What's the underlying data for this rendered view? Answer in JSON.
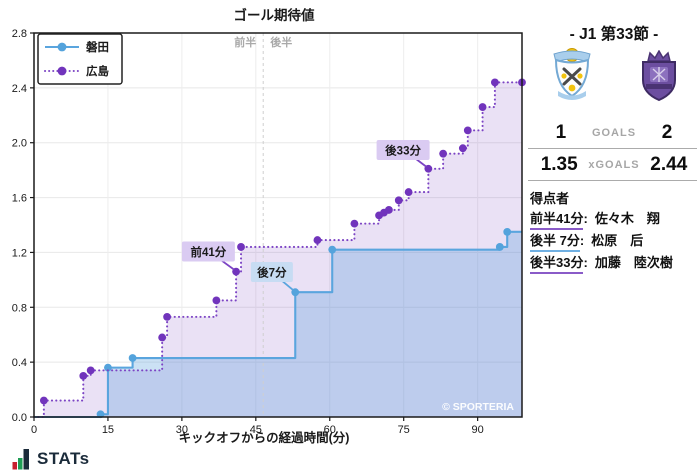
{
  "chart_data": {
    "type": "line",
    "step": true,
    "title": "ゴール期待値",
    "xlabel": "キックオフからの経過時間(分)",
    "ylabel": "",
    "xlim": [
      0,
      99
    ],
    "ylim": [
      0,
      2.8
    ],
    "xticks": [
      0,
      15,
      30,
      45,
      60,
      75,
      90
    ],
    "yticks": [
      0.0,
      0.4,
      0.8,
      1.2,
      1.6,
      2.0,
      2.4,
      2.8
    ],
    "grid": true,
    "legend_position": "upper-left",
    "half_line_x": 46.5,
    "half_labels": [
      "前半",
      "後半"
    ],
    "watermark": "© SPORTERIA",
    "series": [
      {
        "name": "磐田",
        "style": "solid",
        "color": "#5aa5de",
        "marker_color": "#54a3dc",
        "fill": "rgba(93,163,222,0.32)",
        "points": [
          [
            13.5,
            0.02
          ],
          [
            15,
            0.36
          ],
          [
            20,
            0.43
          ],
          [
            53,
            0.91
          ],
          [
            60.5,
            1.22
          ],
          [
            94.5,
            1.24
          ],
          [
            96,
            1.35
          ]
        ]
      },
      {
        "name": "広島",
        "style": "dotted",
        "color": "#7c44c4",
        "marker_color": "#7134bc",
        "fill": "rgba(124,66,194,0.16)",
        "points": [
          [
            2,
            0.12
          ],
          [
            10,
            0.3
          ],
          [
            11.5,
            0.34
          ],
          [
            26,
            0.58
          ],
          [
            27,
            0.73
          ],
          [
            37,
            0.85
          ],
          [
            41,
            1.06
          ],
          [
            42,
            1.24
          ],
          [
            57.5,
            1.29
          ],
          [
            65,
            1.41
          ],
          [
            70,
            1.47
          ],
          [
            71,
            1.49
          ],
          [
            72,
            1.51
          ],
          [
            74,
            1.58
          ],
          [
            76,
            1.64
          ],
          [
            80,
            1.81
          ],
          [
            83,
            1.92
          ],
          [
            87,
            1.96
          ],
          [
            88,
            2.09
          ],
          [
            91,
            2.26
          ],
          [
            93.5,
            2.44
          ],
          [
            99,
            2.44
          ]
        ]
      }
    ],
    "annotations": [
      {
        "label": "前41分",
        "team": "hiroshima",
        "anchor": [
          41,
          1.06
        ],
        "box": [
          30,
          1.28
        ]
      },
      {
        "label": "後7分",
        "team": "iwata",
        "anchor": [
          53,
          0.91
        ],
        "box": [
          44,
          1.13
        ]
      },
      {
        "label": "後33分",
        "team": "hiroshima",
        "anchor": [
          80,
          1.81
        ],
        "box": [
          69.5,
          2.02
        ]
      }
    ]
  },
  "panel": {
    "title": "- J1 第33節 -",
    "goals": {
      "home": "1",
      "label": "GOALS",
      "away": "2"
    },
    "xgoals": {
      "home": "1.35",
      "label": "xGOALS",
      "away": "2.44"
    },
    "scorers_header": "得点者",
    "scorers": [
      {
        "time": "前半41分",
        "name": "佐々木　翔",
        "team": "hiroshima"
      },
      {
        "time": "後半 7分",
        "name": "松原　后",
        "team": "iwata"
      },
      {
        "time": "後半33分",
        "name": "加藤　陸次樹",
        "team": "hiroshima"
      }
    ]
  },
  "brand": {
    "text": "STATs"
  },
  "colors": {
    "iwata": "#5aa5de",
    "hiroshima": "#7c44c4",
    "annotation_bg_iwata": "#c7dcf3",
    "annotation_bg_hiroshima": "#dacbf2",
    "grid": "#e8e8e8",
    "axis": "#1a1a1a",
    "muted": "#a6a6a6"
  }
}
